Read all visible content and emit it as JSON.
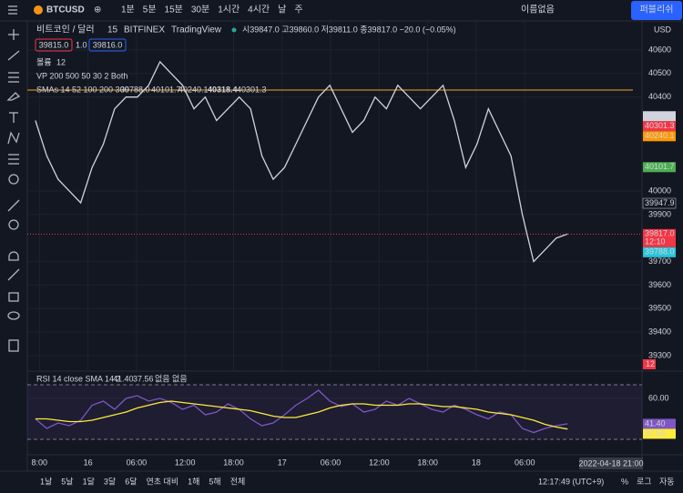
{
  "toolbar": {
    "symbol": "BTCUSD",
    "intervals": [
      "1분",
      "5분",
      "15분",
      "30분",
      "1시간",
      "4시간",
      "날",
      "주"
    ],
    "layout_name": "이름없음",
    "publish": "퍼블리쉬"
  },
  "legend": {
    "title": "비트코인 / 달러",
    "interval": "15",
    "exchange": "BITFINEX",
    "source": "TradingView",
    "ohlc": "시39847.0 고39860.0 저39811.0 종39817.0 −20.0 (−0.05%)",
    "bid": "39815.0",
    "spread": "1.0",
    "ask": "39816.0",
    "volume": "볼륨",
    "volume_value": "12",
    "vp": "VP 200 500 50 30 2 Both",
    "smas": "SMAs 14 52 100 200 300"
  },
  "currency": "USD",
  "crosshair_time": "2022-04-18 21:00",
  "chart_data": [
    {
      "type": "line",
      "x": [
        -0.5,
        0.9,
        2.3,
        3.7,
        5.1,
        6.5,
        7.9,
        9.3,
        10.7,
        12.1,
        13.5,
        14.9,
        16.3,
        17.7,
        19.1,
        20.5,
        21.9,
        23.3,
        24.7,
        26.1,
        27.5,
        28.9,
        30.3,
        31.7,
        33.1,
        34.5,
        35.9,
        37.3,
        38.7,
        40.1,
        41.5,
        42.9,
        44.3,
        45.7,
        47.1,
        48.5,
        49.9,
        51.3,
        52.7,
        54.1,
        55.5,
        56.9,
        58.3,
        59.7,
        61.1,
        62.5,
        63.9,
        65.3
      ],
      "series": [
        {
          "color": "#d1d4dc",
          "values": [
            40300,
            40150,
            40050,
            40000,
            39950,
            40100,
            40200,
            40350,
            40400,
            40400,
            40450,
            40550,
            40500,
            40450,
            40350,
            40400,
            40300,
            40350,
            40400,
            40350,
            40150,
            40050,
            40100,
            40200,
            40300,
            40400,
            40450,
            40350,
            40250,
            40300,
            40400,
            40350,
            40450,
            40400,
            40350,
            40400,
            40450,
            40300,
            40100,
            40200,
            40350,
            40250,
            40150,
            39900,
            39700,
            39750,
            39800,
            39817
          ]
        }
      ],
      "xlim": [
        -1.5,
        74.5
      ],
      "ylim": [
        39234,
        40720
      ],
      "xticks": [
        {
          "value": 0,
          "label": "8:00"
        },
        {
          "value": 6,
          "label": "16"
        },
        {
          "value": 12,
          "label": "06:00"
        },
        {
          "value": 18,
          "label": "12:00"
        },
        {
          "value": 24,
          "label": "18:00"
        },
        {
          "value": 30,
          "label": "17"
        },
        {
          "value": 36,
          "label": "06:00"
        },
        {
          "value": 42,
          "label": "12:00"
        },
        {
          "value": 48,
          "label": "18:00"
        },
        {
          "value": 54,
          "label": "18"
        },
        {
          "value": 60,
          "label": "06:00"
        }
      ],
      "yticks": [
        40600,
        40500,
        40400,
        40000,
        39900,
        39700,
        39600,
        39500,
        39400,
        39300
      ],
      "grid": true,
      "hline": {
        "value": 40430,
        "color": "#f5a623"
      },
      "price_labels": [
        {
          "value": 40318.4,
          "color": "#d1d4dc"
        },
        {
          "value": 40301.3,
          "color": "#f23645"
        },
        {
          "value": 40240.1,
          "color": "#ff9800"
        },
        {
          "value": 40101.7,
          "color": "#4caf50"
        },
        {
          "value": 39947.9,
          "color": "#131722"
        },
        {
          "value": 39817,
          "label": "39817.0",
          "color": "#f23645"
        },
        {
          "value": 39788,
          "label": "39788.0",
          "color": "#26c6da"
        }
      ],
      "countdown": "12:10"
    },
    {
      "type": "line",
      "title": "RSI 14 close SMA 14 2",
      "extra": "없음 없음",
      "x": [
        -0.5,
        0.9,
        2.3,
        3.7,
        5.1,
        6.5,
        7.9,
        9.3,
        10.7,
        12.1,
        13.5,
        14.9,
        16.3,
        17.7,
        19.1,
        20.5,
        21.9,
        23.3,
        24.7,
        26.1,
        27.5,
        28.9,
        30.3,
        31.7,
        33.1,
        34.5,
        35.9,
        37.3,
        38.7,
        40.1,
        41.5,
        42.9,
        44.3,
        45.7,
        47.1,
        48.5,
        49.9,
        51.3,
        52.7,
        54.1,
        55.5,
        56.9,
        58.3,
        59.7,
        61.1,
        62.5,
        63.9,
        65.3
      ],
      "series": [
        {
          "color": "#7e57c2",
          "values": [
            45,
            38,
            42,
            40,
            44,
            55,
            58,
            52,
            60,
            62,
            58,
            60,
            57,
            52,
            55,
            48,
            50,
            56,
            52,
            45,
            40,
            42,
            48,
            55,
            60,
            66,
            58,
            54,
            56,
            50,
            52,
            58,
            55,
            60,
            56,
            52,
            50,
            55,
            52,
            48,
            45,
            50,
            48,
            38,
            35,
            38,
            40,
            41.4
          ]
        },
        {
          "color": "#ffeb3b",
          "values": [
            45,
            45,
            44,
            43,
            43,
            44,
            46,
            48,
            50,
            53,
            55,
            57,
            58,
            57,
            56,
            55,
            54,
            53,
            52,
            51,
            49,
            47,
            46,
            46,
            48,
            50,
            53,
            55,
            56,
            56,
            55,
            55,
            55,
            56,
            56,
            55,
            54,
            54,
            53,
            52,
            50,
            49,
            48,
            46,
            44,
            41,
            39,
            37.56
          ]
        }
      ],
      "xlim": [
        -1.5,
        74.5
      ],
      "ylim": [
        18.67,
        80
      ],
      "yticks": [
        {
          "value": 60,
          "label": "60.00"
        }
      ],
      "bands": [
        70,
        30
      ],
      "price_labels": [
        {
          "value": 41.4,
          "label": "41.40",
          "color": "#7e57c2"
        },
        {
          "value": 37.56,
          "color": "#ffeb3b"
        }
      ]
    }
  ],
  "bottom_bar": {
    "ranges": [
      "1날",
      "5날",
      "1달",
      "3달",
      "6달",
      "연초 대비",
      "1해",
      "5해",
      "전체"
    ],
    "clock": "12:17:49 (UTC+9)",
    "percent": "%",
    "log": "로그",
    "auto": "자동"
  }
}
